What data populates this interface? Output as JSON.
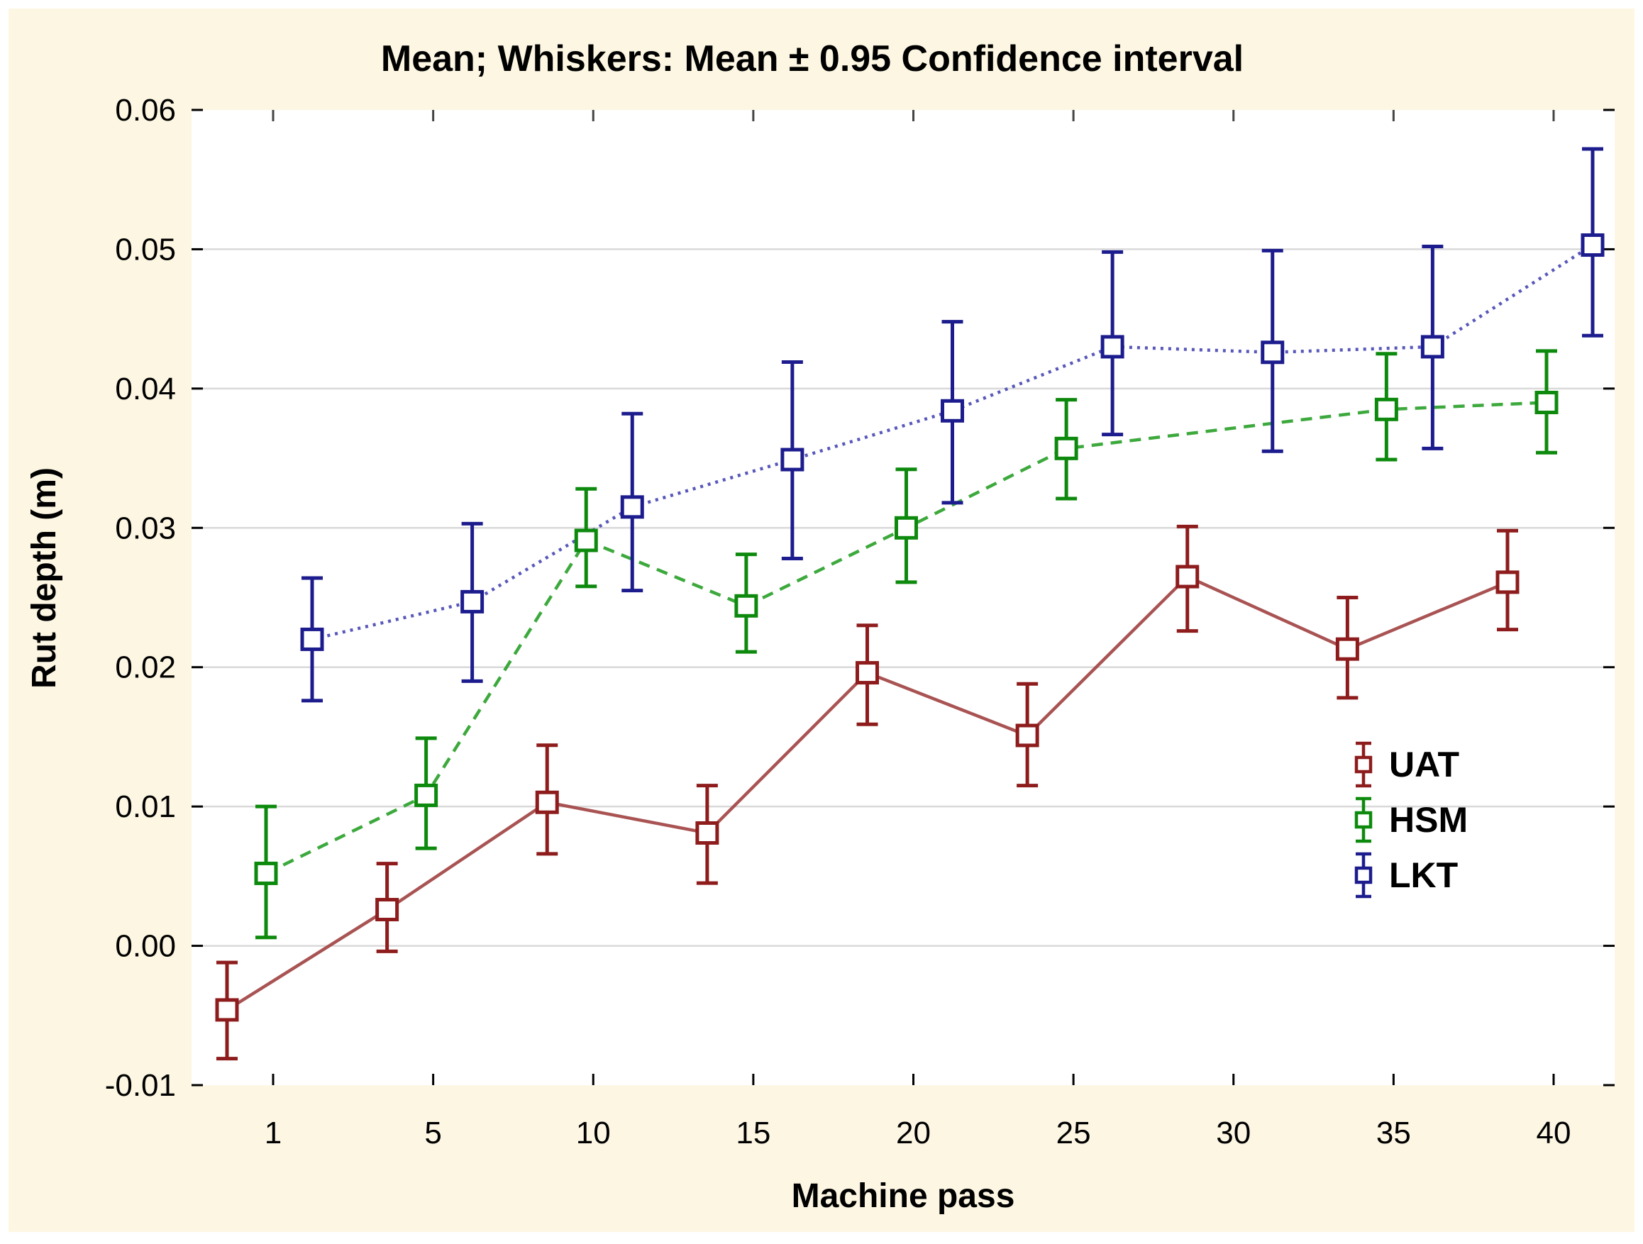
{
  "title": "Mean; Whiskers: Mean ± 0.95 Confidence interval",
  "x_axis": {
    "label": "Machine pass",
    "tick_labels": [
      "1",
      "5",
      "10",
      "15",
      "20",
      "25",
      "30",
      "35",
      "40"
    ]
  },
  "y_axis": {
    "label": "Rut depth (m)",
    "tick_labels": [
      "0.06",
      "0.05",
      "0.04",
      "0.03",
      "0.02",
      "0.01",
      "0.00",
      "-0.01"
    ],
    "tick_values": [
      0.06,
      0.05,
      0.04,
      0.03,
      0.02,
      0.01,
      0.0,
      -0.01
    ],
    "min": -0.01,
    "max": 0.06
  },
  "legend": {
    "position": "inside-right",
    "entries": [
      {
        "label": "UAT",
        "color": "#8e1c1c"
      },
      {
        "label": "HSM",
        "color": "#0d8a0d"
      },
      {
        "label": "LKT",
        "color": "#1c1c8e"
      }
    ]
  },
  "colors": {
    "page_background": "#fcf6e2",
    "plot_background": "#ffffff",
    "gridline": "#d9d9d9",
    "frame": "#000000",
    "uat_marker": "#8e1c1c",
    "uat_line": "#a04040",
    "hsm_marker": "#0d8a0d",
    "hsm_line": "#28a028",
    "lkt_marker": "#1c1c8e",
    "lkt_line": "#4646b4"
  },
  "chart_data": {
    "type": "line",
    "subtype": "means-with-error-bars",
    "title": "Mean; Whiskers: Mean ± 0.95 Confidence interval",
    "xlabel": "Machine pass",
    "ylabel": "Rut depth (m)",
    "categories": [
      1,
      5,
      10,
      15,
      20,
      25,
      30,
      35,
      40
    ],
    "x_scale": "categorical-even-spacing",
    "ylim": [
      -0.01,
      0.06
    ],
    "grid": "horizontal",
    "legend_position": "inside-right",
    "series": [
      {
        "name": "UAT",
        "marker": "open-square",
        "line_style": "solid",
        "marker_color": "#8e1c1c",
        "line_color": "#a04040",
        "means": [
          -0.0046,
          0.0026,
          0.0103,
          0.0081,
          0.0196,
          0.0151,
          0.0265,
          0.0213,
          0.0261
        ],
        "ci_low": [
          -0.0081,
          -0.0004,
          0.0066,
          0.0045,
          0.0159,
          0.0115,
          0.0226,
          0.0178,
          0.0227
        ],
        "ci_high": [
          -0.0012,
          0.0059,
          0.0144,
          0.0115,
          0.023,
          0.0188,
          0.0301,
          0.025,
          0.0298
        ]
      },
      {
        "name": "HSM",
        "marker": "open-square",
        "line_style": "dashed",
        "marker_color": "#0d8a0d",
        "line_color": "#28a028",
        "means": [
          0.0052,
          0.0108,
          0.0291,
          0.0244,
          0.03,
          0.0357,
          null,
          0.0385,
          0.039
        ],
        "ci_low": [
          0.0006,
          0.007,
          0.0258,
          0.0211,
          0.0261,
          0.0321,
          null,
          0.0349,
          0.0354
        ],
        "ci_high": [
          0.01,
          0.0149,
          0.0328,
          0.0281,
          0.0342,
          0.0392,
          null,
          0.0425,
          0.0427
        ]
      },
      {
        "name": "LKT",
        "marker": "open-square",
        "line_style": "dotted",
        "marker_color": "#1c1c8e",
        "line_color": "#4646b4",
        "means": [
          0.022,
          0.0247,
          0.0315,
          0.0349,
          0.0384,
          0.043,
          0.0426,
          0.043,
          0.0503
        ],
        "ci_low": [
          0.0176,
          0.019,
          0.0255,
          0.0278,
          0.0318,
          0.0367,
          0.0355,
          0.0357,
          0.0438
        ],
        "ci_high": [
          0.0264,
          0.0303,
          0.0382,
          0.0419,
          0.0448,
          0.0498,
          0.0499,
          0.0502,
          0.0572
        ]
      }
    ]
  }
}
